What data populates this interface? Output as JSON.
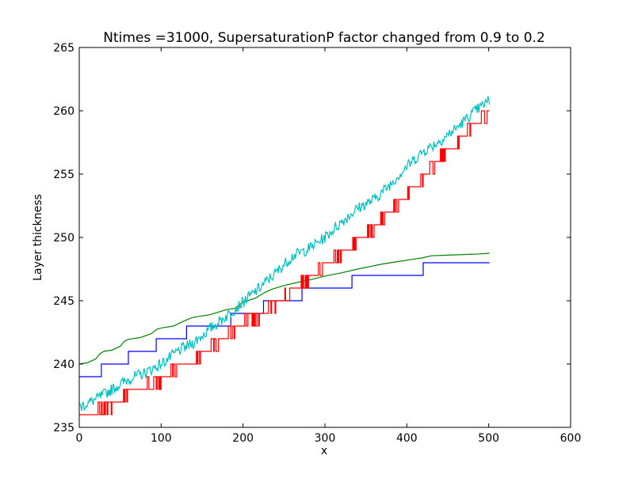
{
  "chart_data": {
    "type": "line",
    "title": "Ntimes =31000, SupersaturationP factor changed from 0.9 to 0.2",
    "xlabel": "x",
    "ylabel": "Layer thickness",
    "xlim": [
      0,
      600
    ],
    "ylim": [
      235,
      265
    ],
    "xticks": [
      0,
      100,
      200,
      300,
      400,
      500,
      600
    ],
    "yticks": [
      235,
      240,
      245,
      250,
      255,
      260,
      265
    ],
    "grid": false,
    "legend": "none",
    "series": [
      {
        "color": "#0000ff",
        "style": "step",
        "x": [
          0,
          27,
          27,
          60,
          60,
          94,
          94,
          131,
          131,
          185,
          185,
          225,
          225,
          272,
          272,
          333,
          333,
          420,
          420,
          501
        ],
        "values": [
          239,
          239,
          240,
          240,
          241,
          241,
          242,
          242,
          243,
          243,
          244,
          244,
          245,
          245,
          246,
          246,
          247,
          247,
          248,
          248
        ]
      },
      {
        "color": "#008000",
        "style": "smooth-steps",
        "x": [
          0,
          10,
          20,
          25,
          30,
          40,
          50,
          55,
          60,
          75,
          88,
          95,
          100,
          115,
          128,
          135,
          140,
          160,
          180,
          190,
          200,
          215,
          225,
          235,
          250,
          270,
          285,
          300,
          320,
          340,
          355,
          370,
          390,
          410,
          420,
          430,
          450,
          470,
          490,
          501
        ],
        "values": [
          240,
          240.1,
          240.4,
          240.8,
          241.0,
          241.1,
          241.4,
          241.8,
          241.95,
          242.1,
          242.4,
          242.75,
          242.85,
          243.0,
          243.4,
          243.6,
          243.7,
          243.9,
          244.3,
          244.4,
          244.9,
          245.2,
          245.6,
          245.9,
          246.2,
          246.5,
          246.7,
          246.95,
          247.2,
          247.5,
          247.7,
          247.9,
          248.1,
          248.3,
          248.4,
          248.55,
          248.6,
          248.65,
          248.7,
          248.75
        ]
      },
      {
        "color": "#ff0000",
        "style": "noisy-step",
        "x": [
          0,
          20,
          40,
          60,
          80,
          100,
          120,
          140,
          160,
          180,
          200,
          220,
          240,
          260,
          280,
          300,
          320,
          340,
          360,
          380,
          400,
          420,
          440,
          460,
          480,
          500
        ],
        "values": [
          236,
          236.5,
          237,
          238,
          238.5,
          239,
          240,
          240.5,
          241.5,
          242.5,
          243.5,
          244,
          245,
          246,
          247,
          248,
          249,
          250,
          251,
          252.5,
          253.5,
          255,
          256.5,
          257.5,
          259,
          260
        ]
      },
      {
        "color": "#00bfbf",
        "style": "noisy",
        "x": [
          0,
          20,
          40,
          60,
          80,
          100,
          120,
          140,
          160,
          180,
          200,
          220,
          240,
          260,
          280,
          300,
          320,
          340,
          360,
          380,
          400,
          420,
          440,
          460,
          480,
          500
        ],
        "values": [
          236.6,
          237.2,
          238.0,
          238.8,
          239.3,
          240.0,
          241.0,
          241.7,
          242.8,
          243.8,
          244.9,
          246.0,
          247.2,
          248.5,
          249.1,
          250.0,
          251.2,
          252.3,
          253.0,
          254.2,
          255.6,
          256.8,
          257.6,
          258.6,
          259.8,
          260.8
        ]
      }
    ]
  }
}
